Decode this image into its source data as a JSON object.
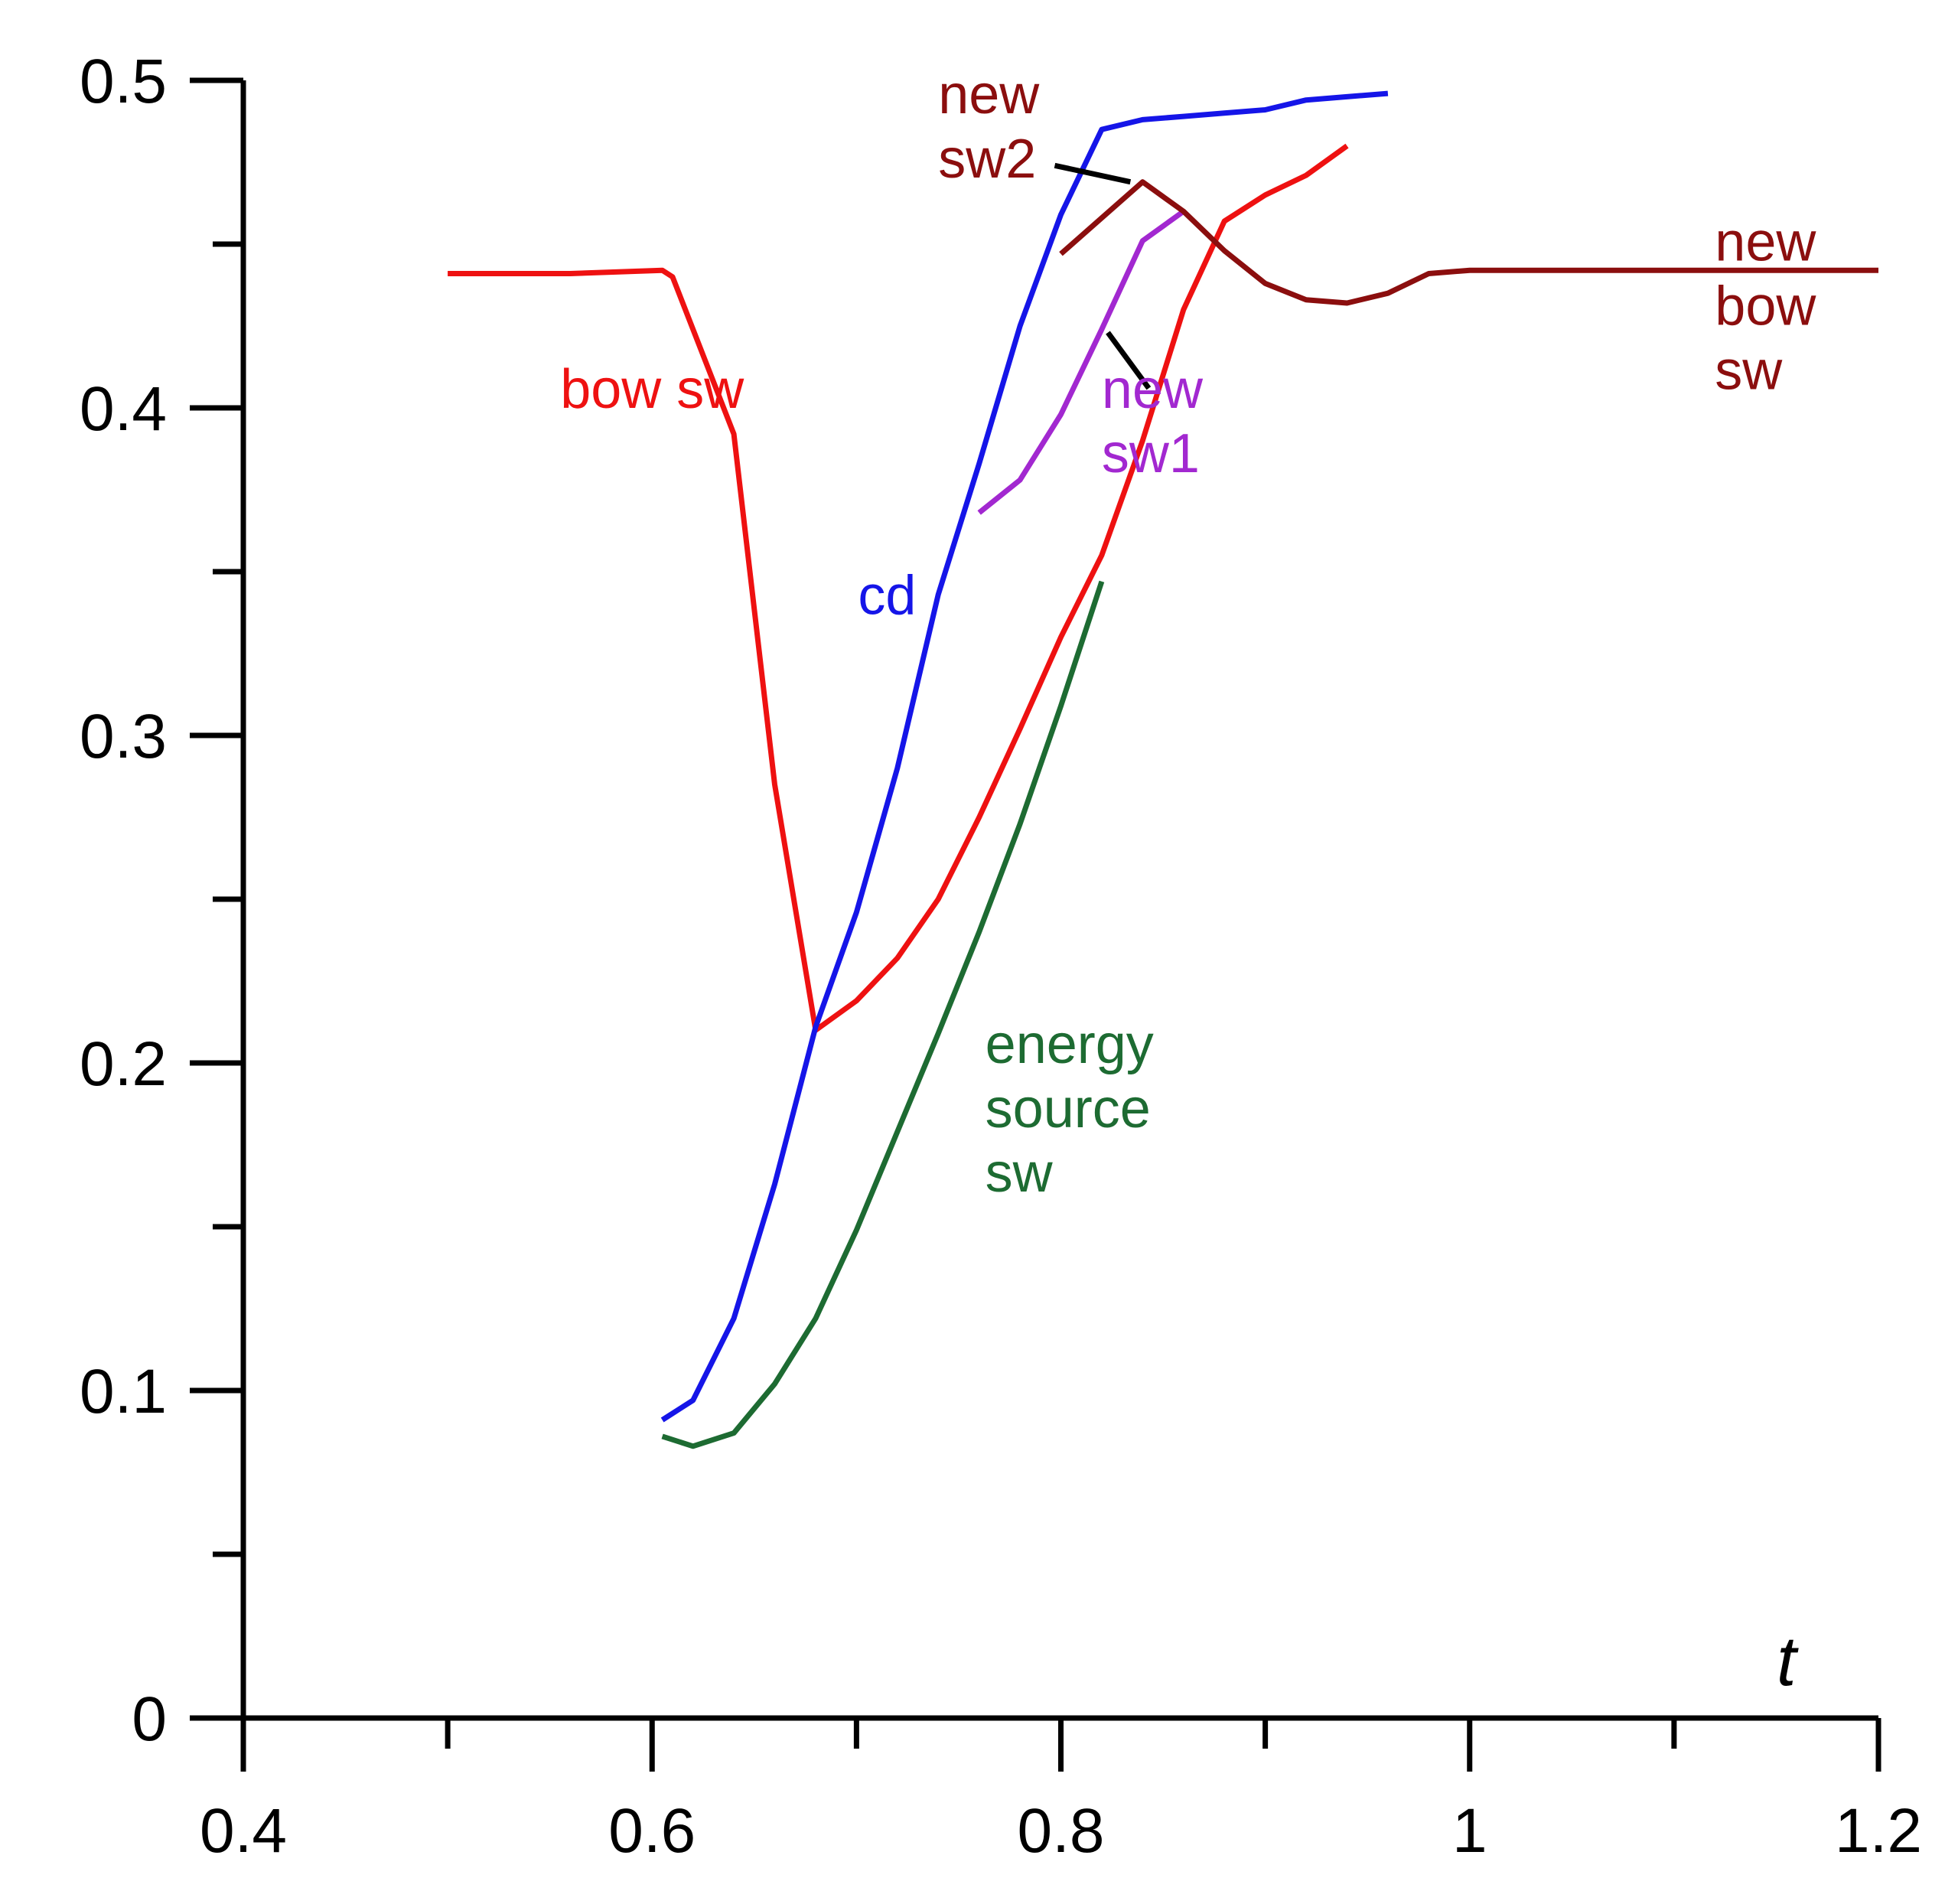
{
  "chart_data": {
    "type": "line",
    "title": "",
    "xlabel": "t",
    "ylabel": "",
    "xlim": [
      0.4,
      1.2
    ],
    "ylim": [
      0,
      0.5
    ],
    "grid": false,
    "x_ticks": [
      {
        "value": 0.4,
        "label": "0.4"
      },
      {
        "value": 0.6,
        "label": "0.6"
      },
      {
        "value": 0.8,
        "label": "0.8"
      },
      {
        "value": 1.0,
        "label": "1"
      },
      {
        "value": 1.2,
        "label": "1.2"
      }
    ],
    "x_minor_ticks": [
      0.5,
      0.7,
      0.9,
      1.1
    ],
    "y_ticks": [
      {
        "value": 0,
        "label": "0"
      },
      {
        "value": 0.1,
        "label": "0.1"
      },
      {
        "value": 0.2,
        "label": "0.2"
      },
      {
        "value": 0.3,
        "label": "0.3"
      },
      {
        "value": 0.4,
        "label": "0.4"
      },
      {
        "value": 0.5,
        "label": "0.5"
      }
    ],
    "y_minor_ticks": [
      0.05,
      0.15,
      0.25,
      0.35,
      0.45
    ],
    "series": [
      {
        "name": "bow sw",
        "color": "#ee1111",
        "x": [
          0.5,
          0.56,
          0.605,
          0.61,
          0.64,
          0.66,
          0.68,
          0.7,
          0.72,
          0.74,
          0.76,
          0.78,
          0.8,
          0.82,
          0.84,
          0.86,
          0.88,
          0.9,
          0.92,
          0.94
        ],
        "y": [
          0.441,
          0.441,
          0.442,
          0.44,
          0.392,
          0.285,
          0.21,
          0.219,
          0.232,
          0.25,
          0.275,
          0.302,
          0.33,
          0.355,
          0.39,
          0.43,
          0.457,
          0.465,
          0.471,
          0.48
        ]
      },
      {
        "name": "cd",
        "color": "#1515e8",
        "x": [
          0.605,
          0.62,
          0.64,
          0.66,
          0.68,
          0.7,
          0.72,
          0.74,
          0.76,
          0.78,
          0.8,
          0.82,
          0.84,
          0.86,
          0.88,
          0.9,
          0.92,
          0.94,
          0.96
        ],
        "y": [
          0.091,
          0.097,
          0.122,
          0.163,
          0.211,
          0.246,
          0.29,
          0.343,
          0.383,
          0.425,
          0.459,
          0.485,
          0.488,
          0.489,
          0.49,
          0.491,
          0.494,
          0.495,
          0.496
        ]
      },
      {
        "name": "energy source sw",
        "color": "#1d6b32",
        "x": [
          0.605,
          0.62,
          0.64,
          0.66,
          0.68,
          0.7,
          0.72,
          0.74,
          0.76,
          0.78,
          0.8,
          0.82
        ],
        "y": [
          0.086,
          0.083,
          0.087,
          0.102,
          0.122,
          0.149,
          0.179,
          0.209,
          0.24,
          0.273,
          0.309,
          0.347
        ]
      },
      {
        "name": "new sw1",
        "color": "#a228d0",
        "x": [
          0.76,
          0.78,
          0.8,
          0.82,
          0.84,
          0.86
        ],
        "y": [
          0.368,
          0.378,
          0.398,
          0.424,
          0.451,
          0.46
        ]
      },
      {
        "name": "new sw2 / new bow sw",
        "color": "#8b0e0e",
        "x": [
          0.8,
          0.82,
          0.84,
          0.86,
          0.88,
          0.9,
          0.92,
          0.94,
          0.96,
          0.98,
          1.0,
          1.05,
          1.1,
          1.15,
          1.2
        ],
        "y": [
          0.447,
          0.458,
          0.469,
          0.46,
          0.448,
          0.438,
          0.433,
          0.432,
          0.435,
          0.441,
          0.442,
          0.442,
          0.442,
          0.442,
          0.442
        ]
      }
    ],
    "annotations": [
      {
        "id": "bow-sw",
        "lines": [
          "bow sw"
        ],
        "color": "#ee1111",
        "x": 0.6,
        "y": 0.4,
        "anchor": "middle"
      },
      {
        "id": "cd",
        "lines": [
          "cd"
        ],
        "color": "#1515e8",
        "x": 0.715,
        "y": 0.337,
        "anchor": "middle"
      },
      {
        "id": "energy-source-sw",
        "lines": [
          "energy",
          "source",
          "sw"
        ],
        "color": "#1d6b32",
        "x": 0.763,
        "y": 0.2,
        "anchor": "start"
      },
      {
        "id": "new-sw1",
        "lines": [
          "new",
          "sw1"
        ],
        "color": "#a228d0",
        "x": 0.82,
        "y": 0.4,
        "anchor": "start"
      },
      {
        "id": "new-sw2",
        "lines": [
          "new",
          "sw2"
        ],
        "color": "#8b0e0e",
        "x": 0.74,
        "y": 0.49,
        "anchor": "start"
      },
      {
        "id": "new-bow-sw",
        "lines": [
          "new",
          "bow",
          "sw"
        ],
        "color": "#8b0e0e",
        "x": 1.12,
        "y": 0.445,
        "anchor": "start"
      }
    ],
    "leaders": [
      {
        "id": "new-sw2-leader",
        "from": [
          0.797,
          0.474
        ],
        "to": [
          0.834,
          0.469
        ]
      },
      {
        "id": "new-sw1-leader",
        "from": [
          0.823,
          0.423
        ],
        "to": [
          0.843,
          0.406
        ]
      }
    ]
  }
}
